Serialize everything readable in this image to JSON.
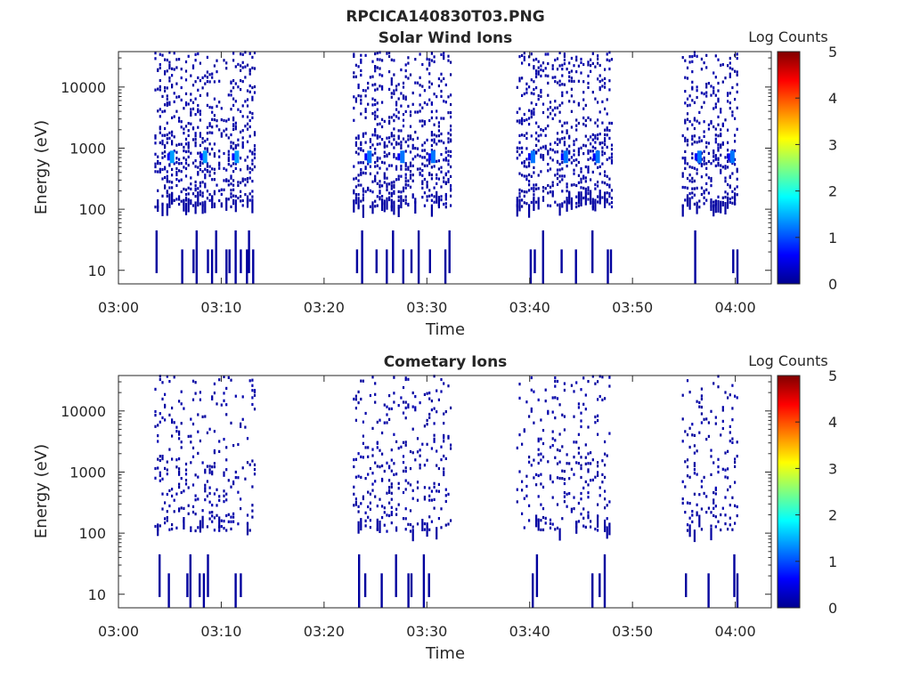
{
  "figure_title": "RPCICA140830T03.PNG",
  "chart_data": [
    {
      "type": "heatmap",
      "title": "Solar Wind Ions",
      "xlabel": "Time",
      "ylabel": "Energy (eV)",
      "x_ticks": [
        "03:00",
        "03:10",
        "03:20",
        "03:30",
        "03:40",
        "03:50",
        "04:00"
      ],
      "x_range_min": [
        0,
        63.5
      ],
      "y_scale": "log",
      "y_ticks": [
        10,
        100,
        1000,
        10000
      ],
      "y_tick_labels": [
        "10",
        "100",
        "1000",
        "10000"
      ],
      "y_range": [
        6,
        38000
      ],
      "colorbar": {
        "label": "Log Counts",
        "range": [
          0,
          5
        ],
        "ticks": [
          "0",
          "1",
          "2",
          "3",
          "4",
          "5"
        ],
        "colormap": "jet"
      },
      "grid": false,
      "sweeps": [
        {
          "start": 3.5,
          "end": 13.2,
          "peak_energy": 720,
          "peak_level": 1.4,
          "peak_times": [
            5.0,
            8.2,
            11.3
          ]
        },
        {
          "start": 22.8,
          "end": 32.3,
          "peak_energy": 720,
          "peak_level": 1.2,
          "peak_times": [
            24.2,
            27.4,
            30.4
          ]
        },
        {
          "start": 38.7,
          "end": 48.0,
          "peak_energy": 720,
          "peak_level": 1.2,
          "peak_times": [
            40.1,
            43.3,
            46.4
          ]
        },
        {
          "start": 54.8,
          "end": 60.2,
          "peak_energy": 720,
          "peak_level": 1.2,
          "peak_times": [
            56.3,
            59.5
          ]
        }
      ],
      "low_energy_streaks_min": [
        3.6,
        6.1,
        7.2,
        7.5,
        8.6,
        9.0,
        9.4,
        10.4,
        10.7,
        11.3,
        11.8,
        12.4,
        12.6,
        13.0,
        23.1,
        23.6,
        25.0,
        26.0,
        26.6,
        27.6,
        28.4,
        29.1,
        30.2,
        31.7,
        32.1,
        40.0,
        40.4,
        41.2,
        43.0,
        44.4,
        46.0,
        47.5,
        47.8,
        56.0,
        59.7,
        60.1
      ],
      "scatter_density": 0.35
    },
    {
      "type": "heatmap",
      "title": "Cometary Ions",
      "xlabel": "Time",
      "ylabel": "Energy (eV)",
      "x_ticks": [
        "03:00",
        "03:10",
        "03:20",
        "03:30",
        "03:40",
        "03:50",
        "04:00"
      ],
      "x_range_min": [
        0,
        63.5
      ],
      "y_scale": "log",
      "y_ticks": [
        10,
        100,
        1000,
        10000
      ],
      "y_tick_labels": [
        "10",
        "100",
        "1000",
        "10000"
      ],
      "y_range": [
        6,
        38000
      ],
      "colorbar": {
        "label": "Log Counts",
        "range": [
          0,
          5
        ],
        "ticks": [
          "0",
          "1",
          "2",
          "3",
          "4",
          "5"
        ],
        "colormap": "jet"
      },
      "grid": false,
      "sweeps": [
        {
          "start": 3.5,
          "end": 13.2
        },
        {
          "start": 22.8,
          "end": 32.3
        },
        {
          "start": 38.7,
          "end": 48.0
        },
        {
          "start": 54.8,
          "end": 60.2
        }
      ],
      "low_energy_streaks_min": [
        3.9,
        4.8,
        6.6,
        6.9,
        7.8,
        8.2,
        8.6,
        11.3,
        11.8,
        23.3,
        23.9,
        25.5,
        26.9,
        28.1,
        28.4,
        29.6,
        30.1,
        40.2,
        40.6,
        46.0,
        46.7,
        47.2,
        55.1,
        57.3,
        59.8,
        60.1
      ],
      "scatter_density": 0.16
    }
  ]
}
